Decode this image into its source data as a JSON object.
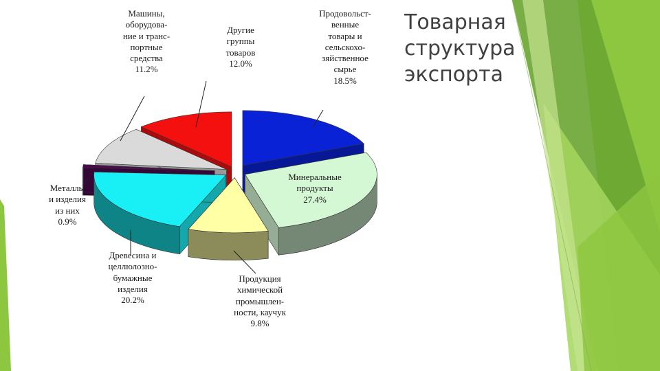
{
  "slide": {
    "title_lines": [
      "Товарная",
      "структура",
      "экспорта"
    ],
    "accent_colors": [
      "#8dc63f",
      "#6aa532",
      "#a4d65e",
      "#c5e38e"
    ]
  },
  "chart_data": {
    "type": "pie",
    "title": "",
    "slices": [
      {
        "label_lines": [
          "Продовольст-",
          "венные",
          "товары и",
          "сельскохо-",
          "зяйственное",
          "сырье"
        ],
        "value": 18.5,
        "value_text": "18.5%",
        "color": "#0a22d6"
      },
      {
        "label_lines": [
          "Минеральные",
          "продукты"
        ],
        "value": 27.4,
        "value_text": "27.4%",
        "color": "#d4f7d4"
      },
      {
        "label_lines": [
          "Продукция",
          "химической",
          "промышлен-",
          "ности, каучук"
        ],
        "value": 9.8,
        "value_text": "9.8%",
        "color": "#ffffa6"
      },
      {
        "label_lines": [
          "Древесина и",
          "целлюлозно-",
          "бумажные",
          "изделия"
        ],
        "value": 20.2,
        "value_text": "20.2%",
        "color": "#19f0f5"
      },
      {
        "label_lines": [
          "Металлы",
          "и изделия",
          "из них"
        ],
        "value": 0.9,
        "value_text": "0.9%",
        "color": "#4a0a4e"
      },
      {
        "label_lines": [
          "Машины,",
          "оборудова-",
          "ние и транс-",
          "портные",
          "средства"
        ],
        "value": 11.2,
        "value_text": "11.2%",
        "color": "#dadada"
      },
      {
        "label_lines": [
          "Другие",
          "группы",
          "товаров"
        ],
        "value": 12.0,
        "value_text": "12.0%",
        "color": "#f51010"
      }
    ],
    "legend": "none",
    "grid": false
  }
}
